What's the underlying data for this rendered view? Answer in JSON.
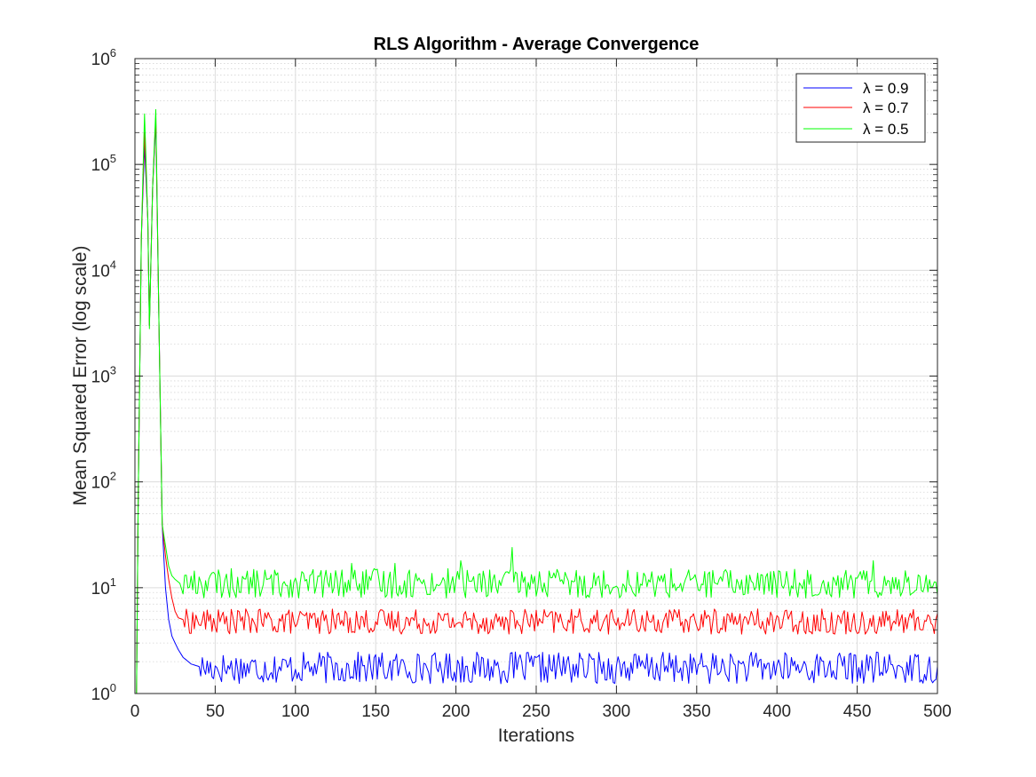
{
  "chart_data": {
    "type": "line",
    "title": "RLS Algorithm - Average Convergence",
    "xlabel": "Iterations",
    "ylabel": "Mean Squared Error (log scale)",
    "yscale": "log",
    "xlim": [
      0,
      500
    ],
    "ylim": [
      1,
      1000000
    ],
    "xticks": [
      0,
      50,
      100,
      150,
      200,
      250,
      300,
      350,
      400,
      450,
      500
    ],
    "yticks": [
      {
        "value": 1,
        "base": "10",
        "exp": "0"
      },
      {
        "value": 10,
        "base": "10",
        "exp": "1"
      },
      {
        "value": 100,
        "base": "10",
        "exp": "2"
      },
      {
        "value": 1000,
        "base": "10",
        "exp": "3"
      },
      {
        "value": 10000,
        "base": "10",
        "exp": "4"
      },
      {
        "value": 100000,
        "base": "10",
        "exp": "5"
      },
      {
        "value": 1000000,
        "base": "10",
        "exp": "6"
      }
    ],
    "grid": true,
    "minor_grid": true,
    "legend_position": "top-right",
    "legend": [
      "λ = 0.9",
      "λ = 0.7",
      "λ = 0.5"
    ],
    "series": [
      {
        "name": "λ = 0.9",
        "color": "#0000ff",
        "key_points": [
          [
            1,
            1.0
          ],
          [
            2,
            60
          ],
          [
            4,
            20000
          ],
          [
            6,
            150000
          ],
          [
            8,
            30000
          ],
          [
            9,
            3000
          ],
          [
            11,
            60000
          ],
          [
            13,
            250000
          ],
          [
            15,
            3000
          ],
          [
            17,
            40
          ],
          [
            19,
            10
          ],
          [
            21,
            5
          ],
          [
            23,
            3.5
          ],
          [
            25,
            3.0
          ],
          [
            27,
            2.6
          ],
          [
            30,
            2.2
          ],
          [
            35,
            1.9
          ],
          [
            40,
            1.8
          ]
        ],
        "steady_state": {
          "from": 40,
          "to": 500,
          "level": 1.75,
          "ripple": 0.15
        }
      },
      {
        "name": "λ = 0.7",
        "color": "#ff0000",
        "key_points": [
          [
            1,
            1.0
          ],
          [
            2,
            60
          ],
          [
            4,
            20000
          ],
          [
            6,
            200000
          ],
          [
            8,
            30000
          ],
          [
            9,
            3000
          ],
          [
            11,
            60000
          ],
          [
            13,
            280000
          ],
          [
            15,
            3000
          ],
          [
            17,
            40
          ],
          [
            19,
            20
          ],
          [
            21,
            12
          ],
          [
            23,
            8
          ],
          [
            25,
            6
          ],
          [
            27,
            5.2
          ],
          [
            30,
            5.0
          ]
        ],
        "steady_state": {
          "from": 30,
          "to": 500,
          "level": 4.8,
          "ripple": 0.12
        }
      },
      {
        "name": "λ = 0.5",
        "color": "#00ff00",
        "key_points": [
          [
            1,
            1.0
          ],
          [
            2,
            60
          ],
          [
            4,
            20000
          ],
          [
            6,
            300000
          ],
          [
            8,
            30000
          ],
          [
            9,
            2800
          ],
          [
            11,
            60000
          ],
          [
            13,
            330000
          ],
          [
            15,
            3000
          ],
          [
            17,
            40
          ],
          [
            19,
            25
          ],
          [
            21,
            16
          ],
          [
            23,
            13
          ],
          [
            25,
            12
          ],
          [
            28,
            11
          ]
        ],
        "steady_state": {
          "from": 28,
          "to": 500,
          "level": 11,
          "ripple": 0.14
        },
        "spikes": [
          [
            135,
            17
          ],
          [
            162,
            17
          ],
          [
            203,
            18
          ],
          [
            235,
            24
          ],
          [
            460,
            18
          ]
        ]
      }
    ]
  }
}
